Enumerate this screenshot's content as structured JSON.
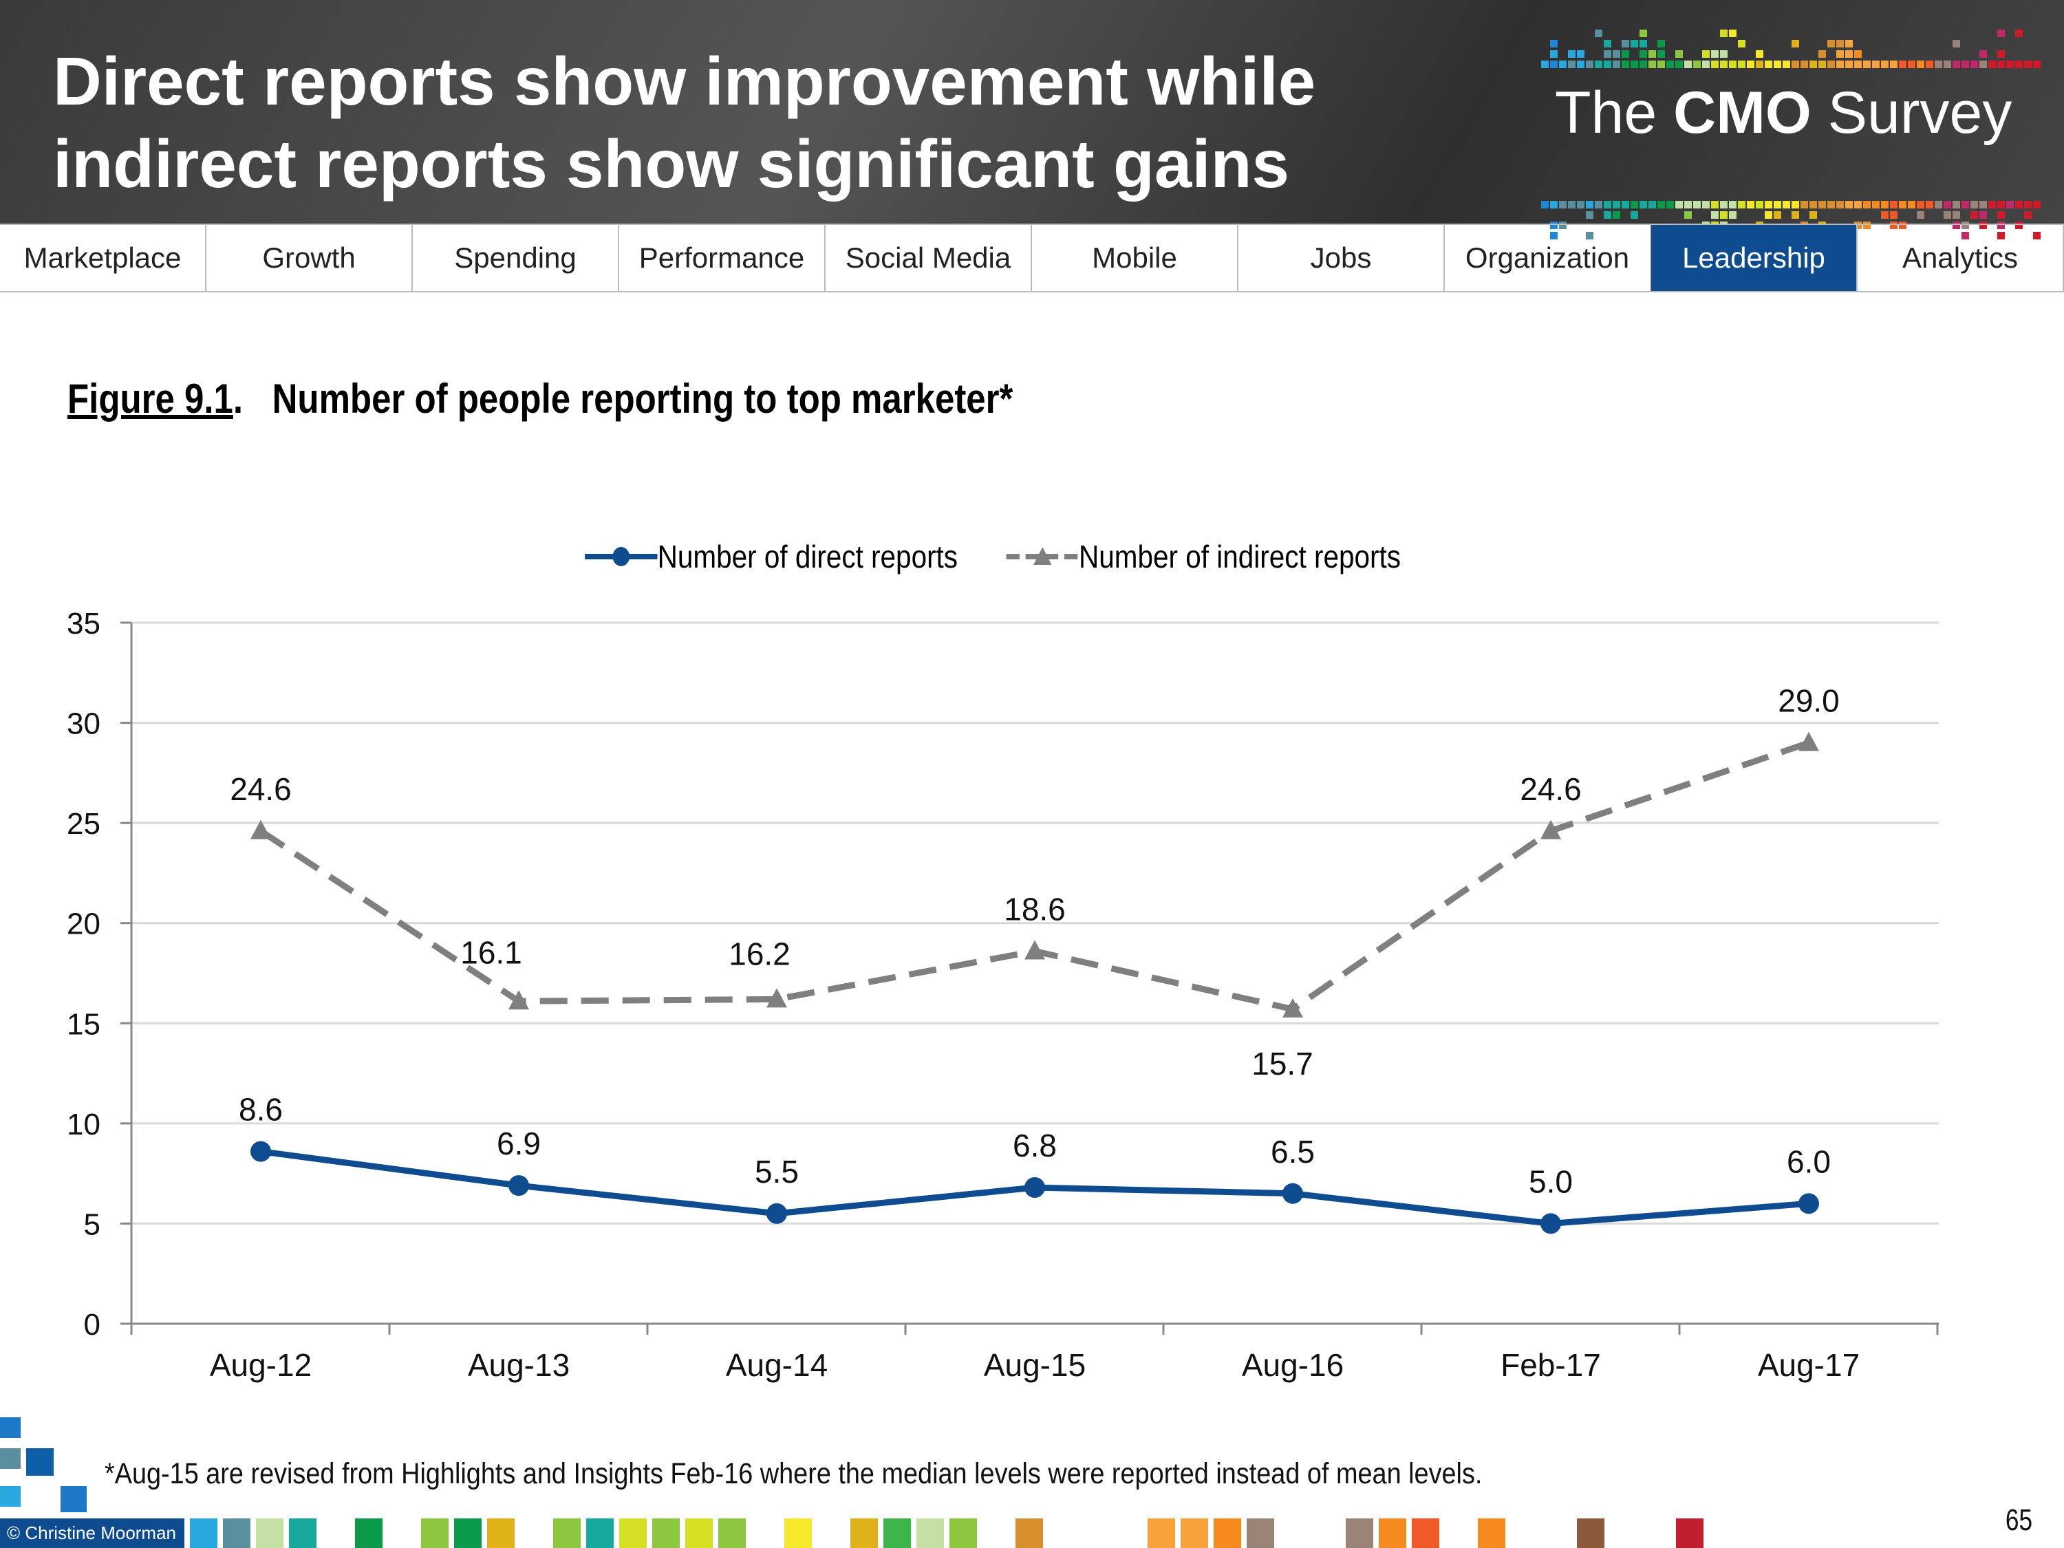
{
  "header": {
    "title_line1": "Direct reports show improvement while",
    "title_line2": "indirect reports show significant gains",
    "logo_the": "The",
    "logo_cmo": "CMO",
    "logo_survey": "Survey"
  },
  "nav": {
    "items": [
      "Marketplace",
      "Growth",
      "Spending",
      "Performance",
      "Social Media",
      "Mobile",
      "Jobs",
      "Organization",
      "Leadership",
      "Analytics"
    ],
    "active": "Leadership"
  },
  "figure": {
    "number": "Figure 9.1",
    "title": "Number of people reporting to top marketer*"
  },
  "chart_data": {
    "type": "line",
    "categories": [
      "Aug-12",
      "Aug-13",
      "Aug-14",
      "Aug-15",
      "Aug-16",
      "Feb-17",
      "Aug-17"
    ],
    "series": [
      {
        "name": "Number of direct reports",
        "values": [
          8.6,
          6.9,
          5.5,
          6.8,
          6.5,
          5.0,
          6.0
        ],
        "labels": [
          "8.6",
          "6.9",
          "5.5",
          "6.8",
          "6.5",
          "5.0",
          "6.0"
        ],
        "color": "#0f4c8f",
        "marker": "circle",
        "style": "solid"
      },
      {
        "name": "Number of indirect reports",
        "values": [
          24.6,
          16.1,
          16.2,
          18.6,
          15.7,
          24.6,
          29.0
        ],
        "labels": [
          "24.6",
          "16.1",
          "16.2",
          "18.6",
          "15.7",
          "24.6",
          "29.0"
        ],
        "color": "#7f7f7f",
        "marker": "triangle",
        "style": "dashed"
      }
    ],
    "ylim": [
      0,
      35
    ],
    "yticks": [
      "0",
      "5",
      "10",
      "15",
      "20",
      "25",
      "30",
      "35"
    ],
    "grid": true,
    "legend": "top-center"
  },
  "footnote": "*Aug-15 are revised from Highlights and Insights Feb-16 where the median levels were reported instead of mean levels.",
  "footer": {
    "copyright": "© Christine Moorman",
    "page": "65"
  }
}
